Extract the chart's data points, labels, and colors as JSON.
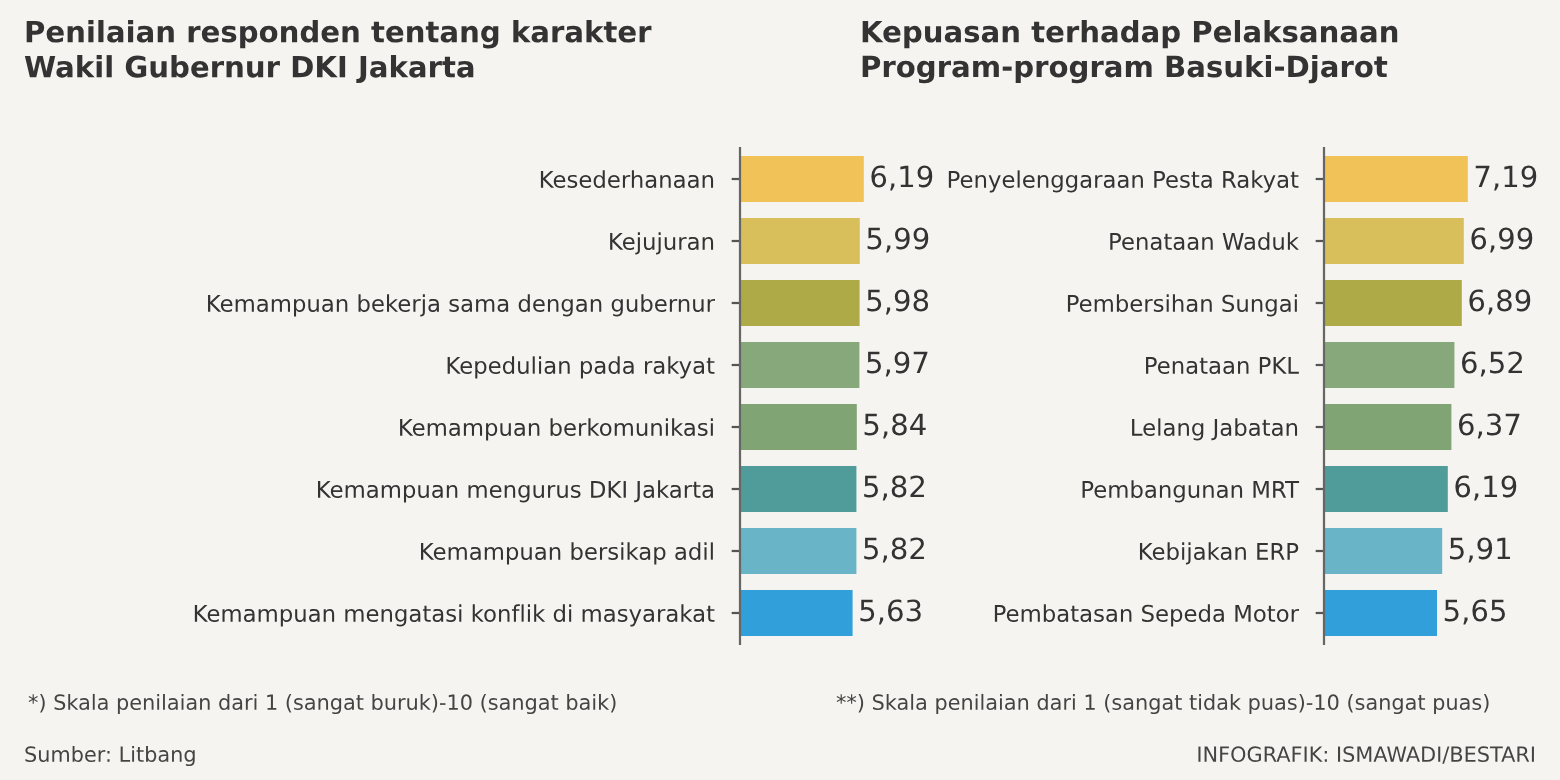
{
  "chart_data": [
    {
      "type": "bar",
      "orientation": "horizontal",
      "title": "Penilaian responden tentang karakter\nWakil Gubernur DKI Jakarta",
      "categories": [
        "Kesederhanaan",
        "Kejujuran",
        "Kemampuan bekerja sama dengan gubernur",
        "Kepedulian pada rakyat",
        "Kemampuan berkomunikasi",
        "Kemampuan mengurus DKI Jakarta",
        "Kemampuan bersikap adil",
        "Kemampuan mengatasi konflik di masyarakat"
      ],
      "values": [
        6.19,
        5.99,
        5.98,
        5.97,
        5.84,
        5.82,
        5.82,
        5.63
      ],
      "colors": [
        "#f0c257",
        "#d8bf5c",
        "#aeaa48",
        "#86a87a",
        "#80a474",
        "#4f9c9a",
        "#69b4c6",
        "#319fda"
      ],
      "data_labels": true,
      "value_labels": [
        "6,19",
        "5,99",
        "5,98",
        "5,97",
        "5,84",
        "5,82",
        "5,82",
        "5,63"
      ],
      "tick_labels": "y",
      "grid": false,
      "legend": false,
      "annotations": [
        "*) Skala penilaian dari 1 (sangat buruk)-10 (sangat baik)",
        "Sumber: Litbang"
      ]
    },
    {
      "type": "bar",
      "orientation": "horizontal",
      "title": "Kepuasan terhadap Pelaksanaan\nProgram-program Basuki-Djarot",
      "categories": [
        "Penyelenggaraan Pesta Rakyat",
        "Penataan Waduk",
        "Pembersihan Sungai",
        "Penataan PKL",
        "Lelang Jabatan",
        "Pembangunan MRT",
        "Kebijakan ERP",
        "Pembatasan Sepeda Motor"
      ],
      "values": [
        7.19,
        6.99,
        6.89,
        6.52,
        6.37,
        6.19,
        5.91,
        5.65
      ],
      "colors": [
        "#f0c257",
        "#d8bf5c",
        "#aeaa48",
        "#86a87a",
        "#80a474",
        "#4f9c9a",
        "#69b4c6",
        "#319fda"
      ],
      "data_labels": true,
      "value_labels": [
        "7,19",
        "6,99",
        "6,89",
        "6,52",
        "6,37",
        "6,19",
        "5,91",
        "5,65"
      ],
      "tick_labels": "y",
      "grid": false,
      "legend": false,
      "annotations": [
        "**) Skala penilaian dari 1 (sangat tidak puas)-10 (sangat puas)",
        "INFOGRAFIK: ISMAWADI/BESTARI"
      ]
    }
  ]
}
